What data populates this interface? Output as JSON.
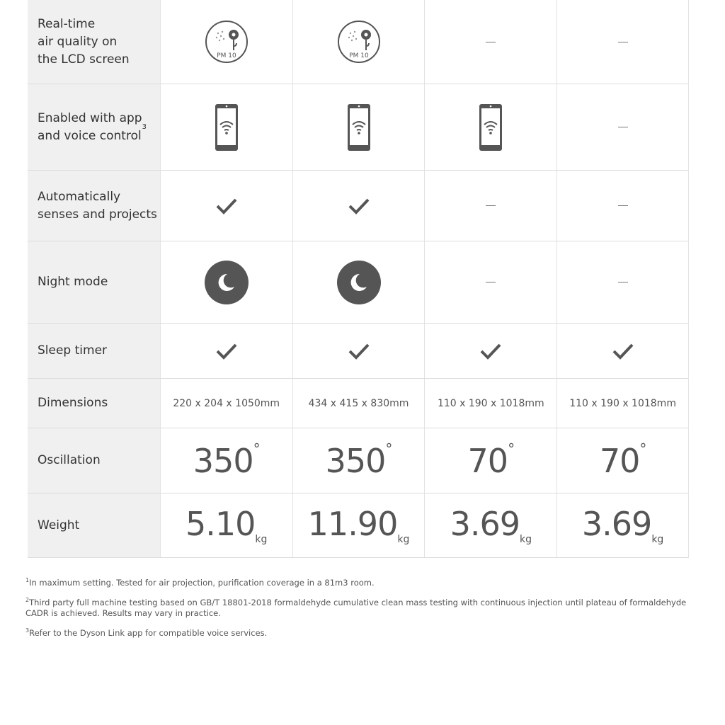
{
  "rows": [
    {
      "label": "Real-time\nair quality on\nthe LCD screen",
      "cells": [
        "pm10",
        "pm10",
        "dash",
        "dash"
      ],
      "pm_label": "PM 10"
    },
    {
      "label": "Enabled with app\nand voice control",
      "sup": "3",
      "cells": [
        "phone",
        "phone",
        "phone",
        "dash"
      ]
    },
    {
      "label": "Automatically\nsenses and projects",
      "cells": [
        "check",
        "check",
        "dash",
        "dash"
      ]
    },
    {
      "label": "Night mode",
      "cells": [
        "moon",
        "moon",
        "dash",
        "dash"
      ]
    },
    {
      "label": "Sleep timer",
      "cells": [
        "check",
        "check",
        "check",
        "check"
      ]
    },
    {
      "label": "Dimensions",
      "cells": [
        "220 x 204 x 1050mm",
        "434 x 415 x 830mm",
        "110 x 190 x 1018mm",
        "110 x 190 x 1018mm"
      ]
    },
    {
      "label": "Oscillation",
      "cells": [
        "350",
        "350",
        "70",
        "70"
      ],
      "unit": "°"
    },
    {
      "label": "Weight",
      "cells": [
        "5.10",
        "11.90",
        "3.69",
        "3.69"
      ],
      "unit": "kg"
    }
  ],
  "footnotes": [
    {
      "num": "1",
      "text": "In maximum setting. Tested for air projection, purification coverage in a 81m3 room."
    },
    {
      "num": "2",
      "text": "Third party full machine testing based on GB/T 18801-2018 formaldehyde cumulative clean mass testing with continuous injection until plateau of formaldehyde CADR is achieved. Results may vary in practice."
    },
    {
      "num": "3",
      "text": "Refer to the Dyson Link app for compatible voice services."
    }
  ],
  "colors": {
    "icon": "#555555",
    "label_bg": "#f0f0f0"
  }
}
